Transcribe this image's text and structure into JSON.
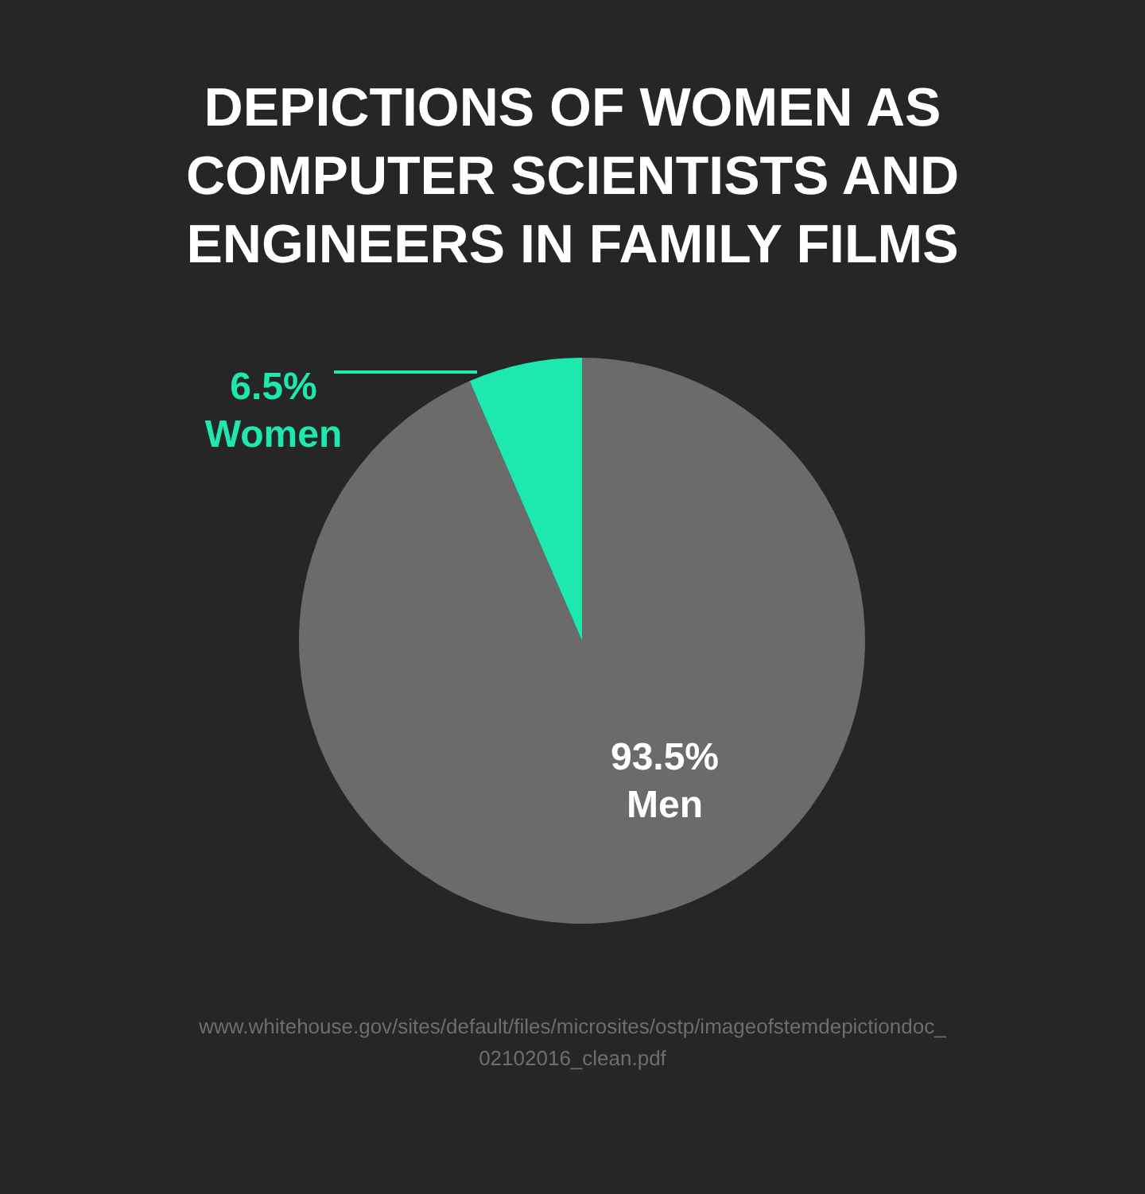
{
  "chart_data": {
    "type": "pie",
    "title": "DEPICTIONS OF WOMEN AS COMPUTER SCIENTISTS AND ENGINEERS IN FAMILY FILMS",
    "categories": [
      "Men",
      "Women"
    ],
    "values": [
      93.5,
      6.5
    ],
    "colors": [
      "#6b6b6b",
      "#1de9ae"
    ],
    "value_labels": [
      "93.5%",
      "6.5%"
    ],
    "annotations": [
      "www.whitehouse.gov/sites/default/files/microsites/ostp/imageofstemdepictiondoc_02102016_clean.pdf"
    ]
  }
}
